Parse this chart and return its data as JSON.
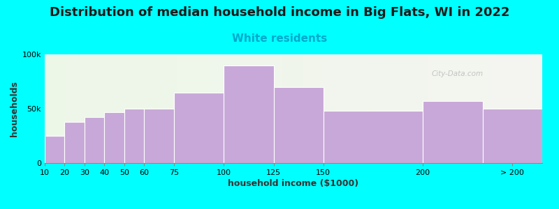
{
  "title": "Distribution of median household income in Big Flats, WI in 2022",
  "subtitle": "White residents",
  "xlabel": "household income ($1000)",
  "ylabel": "households",
  "background_color": "#00FFFF",
  "bar_color": "#C8A8D8",
  "bar_edge_color": "#ffffff",
  "categories": [
    "10",
    "20",
    "30",
    "40",
    "50",
    "60",
    "75",
    "100",
    "125",
    "150",
    "200",
    "> 200"
  ],
  "bin_edges": [
    10,
    20,
    30,
    40,
    50,
    60,
    75,
    100,
    125,
    150,
    200,
    230,
    260
  ],
  "values": [
    25000,
    38000,
    42000,
    47000,
    50000,
    50000,
    65000,
    90000,
    70000,
    48000,
    57000,
    50000
  ],
  "ylim": [
    0,
    100000
  ],
  "yticks": [
    0,
    50000,
    100000
  ],
  "ytick_labels": [
    "0",
    "50k",
    "100k"
  ],
  "title_fontsize": 13,
  "subtitle_fontsize": 11,
  "subtitle_color": "#00AACC",
  "axis_label_fontsize": 9,
  "tick_fontsize": 8,
  "watermark": "City-Data.com",
  "xtick_positions": [
    10,
    20,
    30,
    40,
    50,
    60,
    75,
    100,
    125,
    150,
    200,
    245
  ],
  "xtick_labels": [
    "10",
    "20",
    "30",
    "40",
    "50",
    "60",
    "75",
    "100",
    "125",
    "150",
    "200",
    "> 200"
  ]
}
